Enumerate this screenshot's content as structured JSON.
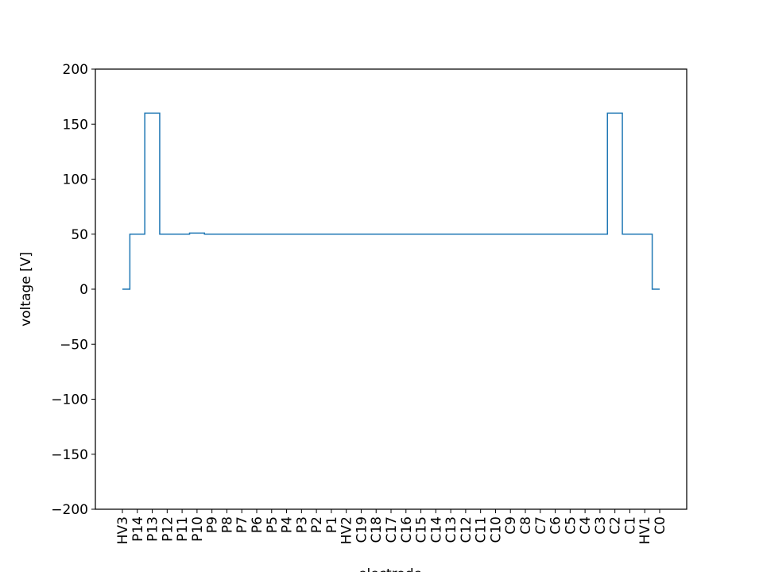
{
  "chart_data": {
    "type": "line",
    "title": "",
    "xlabel": "electrode",
    "ylabel": "voltage [V]",
    "ylim": [
      -200,
      200
    ],
    "yticks": [
      -200,
      -150,
      -100,
      -50,
      0,
      50,
      100,
      150,
      200
    ],
    "ytick_labels": [
      "−200",
      "−150",
      "−100",
      "−50",
      "0",
      "50",
      "100",
      "150",
      "200"
    ],
    "grid": false,
    "legend": false,
    "line_color": "#1f77b4",
    "drawstyle": "steps-mid",
    "categories": [
      "HV3",
      "P14",
      "P13",
      "P12",
      "P11",
      "P10",
      "P9",
      "P8",
      "P7",
      "P6",
      "P5",
      "P4",
      "P3",
      "P2",
      "P1",
      "HV2",
      "C19",
      "C18",
      "C17",
      "C16",
      "C15",
      "C14",
      "C13",
      "C12",
      "C11",
      "C10",
      "C9",
      "C8",
      "C7",
      "C6",
      "C5",
      "C4",
      "C3",
      "C2",
      "C1",
      "HV1",
      "C0"
    ],
    "values": [
      0,
      50,
      160,
      50,
      50,
      51,
      50,
      50,
      50,
      50,
      50,
      50,
      50,
      50,
      50,
      50,
      50,
      50,
      50,
      50,
      50,
      50,
      50,
      50,
      50,
      50,
      50,
      50,
      50,
      50,
      50,
      50,
      50,
      160,
      50,
      50,
      0
    ]
  }
}
